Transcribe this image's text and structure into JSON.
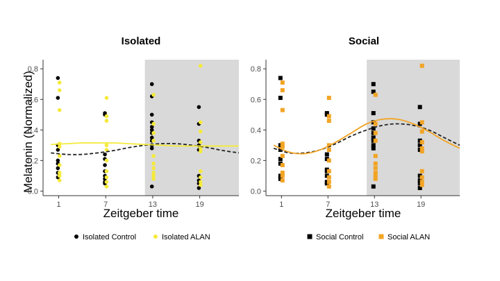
{
  "chart_data": [
    {
      "type": "scatter",
      "title": "Isolated",
      "xlabel": "Zeitgeber time",
      "ylabel": "Melatonin (Normalized)",
      "x_ticks": [
        1,
        7,
        13,
        19
      ],
      "y_ticks": [
        "0.0",
        "0.2",
        "0.4",
        "0.6",
        "0.8"
      ],
      "xlim": [
        -1,
        24
      ],
      "ylim": [
        -0.03,
        0.86
      ],
      "dark_phase": [
        12,
        24
      ],
      "grid": false,
      "legend_position": "bottom",
      "series": [
        {
          "name": "Isolated Control",
          "color": "#000000",
          "marker": "circle",
          "x": [
            1,
            1,
            1,
            1,
            1,
            1,
            1,
            1,
            1,
            7,
            7,
            7,
            7,
            7,
            7,
            7,
            7,
            7,
            7,
            13,
            13,
            13,
            13,
            13,
            13,
            13,
            13,
            13,
            13,
            13,
            13,
            19,
            19,
            19,
            19,
            19,
            19,
            19,
            19,
            19
          ],
          "y": [
            0.74,
            0.61,
            0.3,
            0.27,
            0.2,
            0.18,
            0.15,
            0.12,
            0.09,
            0.51,
            0.5,
            0.24,
            0.21,
            0.17,
            0.13,
            0.1,
            0.08,
            0.06,
            0.05,
            0.7,
            0.62,
            0.5,
            0.45,
            0.42,
            0.4,
            0.38,
            0.35,
            0.33,
            0.3,
            0.28,
            0.03,
            0.55,
            0.44,
            0.33,
            0.3,
            0.27,
            0.1,
            0.07,
            0.05,
            0.02
          ],
          "fit": [
            [
              0,
              0.25
            ],
            [
              2,
              0.24
            ],
            [
              4,
              0.24
            ],
            [
              6,
              0.25
            ],
            [
              8,
              0.265
            ],
            [
              10,
              0.285
            ],
            [
              12,
              0.3
            ],
            [
              14,
              0.31
            ],
            [
              16,
              0.31
            ],
            [
              18,
              0.3
            ],
            [
              20,
              0.285
            ],
            [
              22,
              0.265
            ],
            [
              24,
              0.25
            ]
          ],
          "fit_style": "dashed"
        },
        {
          "name": "Isolated ALAN",
          "color": "#f5ea3a",
          "marker": "circle",
          "x": [
            1,
            1,
            1,
            1,
            1,
            1,
            1,
            1,
            1,
            1,
            7,
            7,
            7,
            7,
            7,
            7,
            7,
            7,
            7,
            7,
            13,
            13,
            13,
            13,
            13,
            13,
            13,
            13,
            13,
            13,
            19,
            19,
            19,
            19,
            19,
            19,
            19,
            19,
            19,
            19
          ],
          "y": [
            0.71,
            0.66,
            0.53,
            0.31,
            0.29,
            0.23,
            0.17,
            0.12,
            0.1,
            0.07,
            0.61,
            0.49,
            0.46,
            0.3,
            0.27,
            0.2,
            0.13,
            0.09,
            0.06,
            0.03,
            0.63,
            0.44,
            0.38,
            0.33,
            0.23,
            0.18,
            0.15,
            0.12,
            0.1,
            0.08,
            0.82,
            0.45,
            0.39,
            0.32,
            0.28,
            0.26,
            0.13,
            0.09,
            0.06,
            0.04
          ],
          "fit": [
            [
              0,
              0.305
            ],
            [
              2,
              0.31
            ],
            [
              4,
              0.315
            ],
            [
              6,
              0.315
            ],
            [
              8,
              0.315
            ],
            [
              10,
              0.31
            ],
            [
              12,
              0.305
            ],
            [
              14,
              0.3
            ],
            [
              16,
              0.295
            ],
            [
              18,
              0.295
            ],
            [
              20,
              0.295
            ],
            [
              22,
              0.295
            ],
            [
              24,
              0.295
            ]
          ],
          "fit_style": "solid"
        }
      ]
    },
    {
      "type": "scatter",
      "title": "Social",
      "xlabel": "Zeitgeber time",
      "ylabel": "",
      "x_ticks": [
        1,
        7,
        13,
        19
      ],
      "y_ticks": [
        "0.0",
        "0.2",
        "0.4",
        "0.6",
        "0.8"
      ],
      "xlim": [
        -1,
        24
      ],
      "ylim": [
        -0.03,
        0.86
      ],
      "dark_phase": [
        12,
        24
      ],
      "grid": false,
      "legend_position": "bottom",
      "series": [
        {
          "name": "Social Control",
          "color": "#000000",
          "marker": "square",
          "x": [
            1,
            1,
            1,
            1,
            1,
            1,
            1,
            1,
            7,
            7,
            7,
            7,
            7,
            7,
            7,
            7,
            7,
            13,
            13,
            13,
            13,
            13,
            13,
            13,
            13,
            13,
            13,
            13,
            19,
            19,
            19,
            19,
            19,
            19,
            19,
            19,
            19
          ],
          "y": [
            0.74,
            0.61,
            0.3,
            0.27,
            0.21,
            0.18,
            0.1,
            0.08,
            0.51,
            0.5,
            0.24,
            0.21,
            0.14,
            0.13,
            0.1,
            0.06,
            0.05,
            0.7,
            0.65,
            0.51,
            0.45,
            0.41,
            0.38,
            0.35,
            0.33,
            0.3,
            0.28,
            0.03,
            0.55,
            0.44,
            0.33,
            0.3,
            0.27,
            0.1,
            0.07,
            0.05,
            0.02
          ],
          "fit": [
            [
              0,
              0.28
            ],
            [
              2,
              0.25
            ],
            [
              4,
              0.25
            ],
            [
              6,
              0.27
            ],
            [
              8,
              0.31
            ],
            [
              10,
              0.36
            ],
            [
              12,
              0.4
            ],
            [
              14,
              0.43
            ],
            [
              16,
              0.44
            ],
            [
              18,
              0.43
            ],
            [
              20,
              0.4
            ],
            [
              22,
              0.35
            ],
            [
              24,
              0.3
            ]
          ],
          "fit_style": "dashed"
        },
        {
          "name": "Social ALAN",
          "color": "#f2a424",
          "marker": "square",
          "x": [
            1,
            1,
            1,
            1,
            1,
            1,
            1,
            1,
            1,
            1,
            7,
            7,
            7,
            7,
            7,
            7,
            7,
            7,
            7,
            7,
            13,
            13,
            13,
            13,
            13,
            13,
            13,
            13,
            13,
            13,
            19,
            19,
            19,
            19,
            19,
            19,
            19,
            19,
            19,
            19
          ],
          "y": [
            0.71,
            0.66,
            0.53,
            0.31,
            0.29,
            0.23,
            0.17,
            0.12,
            0.1,
            0.07,
            0.61,
            0.49,
            0.46,
            0.3,
            0.27,
            0.2,
            0.13,
            0.09,
            0.06,
            0.03,
            0.63,
            0.44,
            0.38,
            0.33,
            0.23,
            0.18,
            0.15,
            0.12,
            0.1,
            0.08,
            0.82,
            0.45,
            0.39,
            0.32,
            0.28,
            0.26,
            0.13,
            0.09,
            0.06,
            0.04
          ],
          "fit": [
            [
              0,
              0.3
            ],
            [
              2,
              0.255
            ],
            [
              4,
              0.245
            ],
            [
              6,
              0.27
            ],
            [
              8,
              0.32
            ],
            [
              10,
              0.38
            ],
            [
              12,
              0.44
            ],
            [
              14,
              0.47
            ],
            [
              16,
              0.47
            ],
            [
              18,
              0.44
            ],
            [
              20,
              0.39
            ],
            [
              22,
              0.33
            ],
            [
              24,
              0.28
            ]
          ],
          "fit_style": "solid"
        }
      ]
    }
  ]
}
